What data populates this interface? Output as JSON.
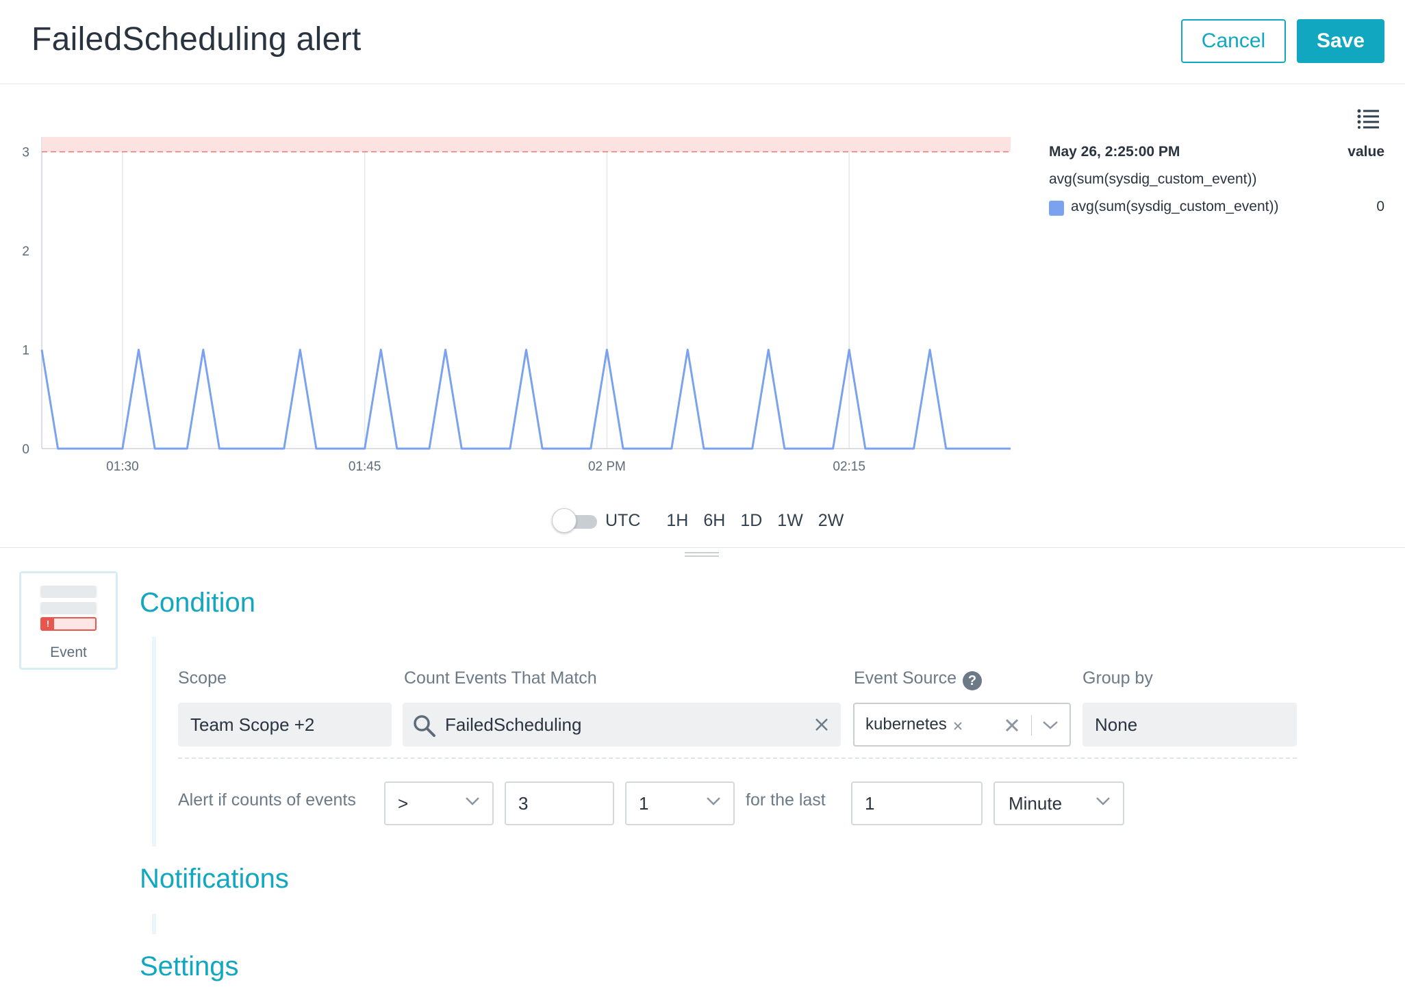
{
  "header": {
    "title": "FailedScheduling alert",
    "cancel_label": "Cancel",
    "save_label": "Save"
  },
  "colors": {
    "accent": "#12a7c1",
    "series": "#7aa2ef",
    "threshold_band": "#fde2e2",
    "threshold_line": "#e8796f",
    "alert_red": "#e8564e"
  },
  "chart_data": {
    "type": "line",
    "x_unit": "minutes since 01:25",
    "x": [
      0,
      1,
      5,
      6,
      7,
      9,
      10,
      11,
      15,
      16,
      17,
      20,
      21,
      22,
      24,
      25,
      26,
      29,
      30,
      31,
      34,
      35,
      36,
      39,
      40,
      41,
      44,
      45,
      46,
      49,
      50,
      51,
      54,
      55,
      56,
      60
    ],
    "series": [
      {
        "name": "avg(sum(sysdig_custom_event))",
        "values": [
          1,
          0,
          0,
          1,
          0,
          0,
          1,
          0,
          0,
          1,
          0,
          0,
          1,
          0,
          0,
          1,
          0,
          0,
          1,
          0,
          0,
          1,
          0,
          0,
          1,
          0,
          0,
          1,
          0,
          0,
          1,
          0,
          0,
          1,
          0,
          0
        ]
      }
    ],
    "x_ticks": [
      "01:30",
      "01:45",
      "02 PM",
      "02:15"
    ],
    "x_tick_positions": [
      5,
      20,
      35,
      50
    ],
    "y_ticks": [
      "0",
      "1",
      "2",
      "3"
    ],
    "ylim": [
      0,
      3.15
    ],
    "xlim": [
      0,
      60
    ],
    "threshold": 3,
    "threshold_band": [
      3,
      3.15
    ],
    "grid": "vertical",
    "legend": {
      "time": "May 26, 2:25:00 PM",
      "value_header": "value",
      "metric": "avg(sum(sysdig_custom_event))",
      "series_label": "avg(sum(sysdig_custom_event))",
      "series_value": "0"
    }
  },
  "time_controls": {
    "utc_label": "UTC",
    "utc_enabled": false,
    "ranges": [
      "1H",
      "6H",
      "1D",
      "1W",
      "2W"
    ]
  },
  "alert_type": {
    "label": "Event",
    "icon": "event-alert-icon"
  },
  "sections": {
    "condition": "Condition",
    "notifications": "Notifications",
    "settings": "Settings"
  },
  "condition": {
    "scope_label": "Scope",
    "scope_value": "Team Scope +2",
    "match_label": "Count Events That Match",
    "match_value": "FailedScheduling",
    "source_label": "Event Source",
    "source_value": "kubernetes",
    "group_label": "Group by",
    "group_value": "None",
    "alert_if_label": "Alert if counts of events",
    "operator": ">",
    "threshold": "3",
    "count_select": "1",
    "for_the_last_label": "for the last",
    "duration": "1",
    "unit": "Minute"
  }
}
